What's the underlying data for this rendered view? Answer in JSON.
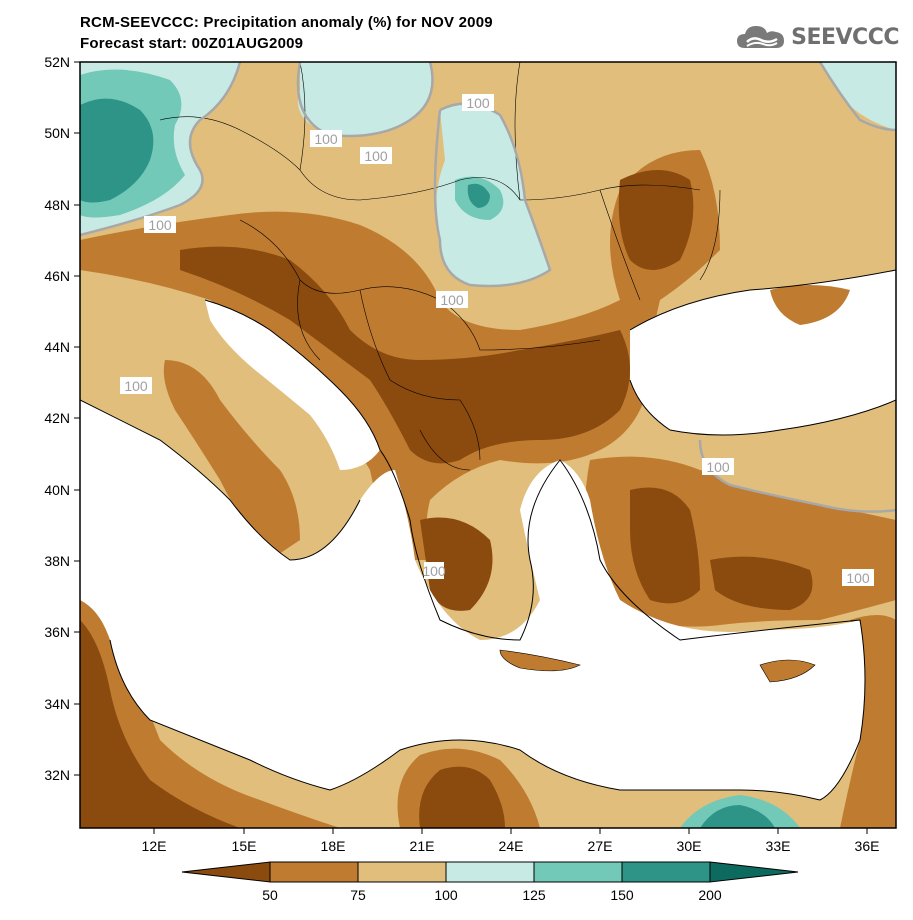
{
  "header": {
    "title": "RCM-SEEVCCC: Precipitation anomaly (%) for NOV 2009",
    "subtitle": "Forecast start: 00Z01AUG2009",
    "logo_text": "SEEVCCC",
    "logo_icon": "cloud-icon"
  },
  "map": {
    "lat_labels": [
      "52N",
      "50N",
      "48N",
      "46N",
      "44N",
      "42N",
      "40N",
      "38N",
      "36N",
      "34N",
      "32N"
    ],
    "lon_labels": [
      "12E",
      "15E",
      "18E",
      "21E",
      "24E",
      "27E",
      "30E",
      "33E",
      "36E"
    ],
    "contour_labels": [
      "100",
      "100",
      "100",
      "100",
      "100",
      "100",
      "100",
      "100",
      "100"
    ],
    "colors": {
      "below_50": "#8b4a0e",
      "50_75": "#bf7b30",
      "75_100": "#e1be7c",
      "100_125": "#c7ebe4",
      "125_150": "#72c9b7",
      "150_200": "#2d9487",
      "above_200": "#0c6b5e",
      "sea": "#ffffff",
      "contour": "#a8a8a8"
    }
  },
  "colorbar": {
    "labels": [
      "50",
      "75",
      "100",
      "125",
      "150",
      "200"
    ],
    "colors": [
      "#8b4a0e",
      "#bf7b30",
      "#e1be7c",
      "#c7ebe4",
      "#72c9b7",
      "#2d9487",
      "#0c6b5e"
    ]
  }
}
